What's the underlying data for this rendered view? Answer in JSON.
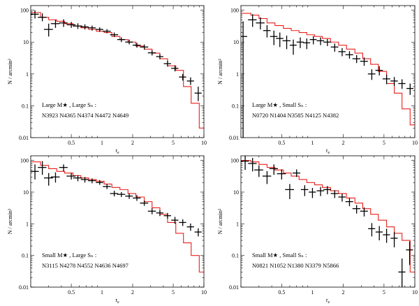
{
  "figure": {
    "xlabel": "r_e",
    "ylabel": "N / arcmin²",
    "xlim": [
      0.2,
      10
    ],
    "ylim": [
      0.01,
      140
    ],
    "xticks": [
      0.5,
      1,
      2,
      5,
      10
    ],
    "xtick_labels": [
      "0.5",
      "1",
      "2",
      "5",
      "10"
    ],
    "yticks": [
      0.01,
      0.1,
      1,
      10,
      100
    ],
    "ytick_labels": [
      "0.01",
      "0.1",
      "1",
      "10",
      "100"
    ]
  },
  "chart_data": [
    {
      "type": "scatter",
      "title": "",
      "annotation_line1": "Large M★ , Large Sₙ :",
      "annotation_line2": "N3923 N4365 N4374 N4472 N4649",
      "xlabel": "r_e",
      "ylabel": "N / arcmin²",
      "xlim": [
        0.2,
        10
      ],
      "ylim": [
        0.01,
        140
      ],
      "series": [
        {
          "name": "data",
          "kind": "errorbar",
          "x": [
            0.22,
            0.26,
            0.3,
            0.35,
            0.42,
            0.5,
            0.58,
            0.68,
            0.8,
            0.95,
            1.12,
            1.32,
            1.55,
            1.85,
            2.2,
            2.6,
            3.1,
            3.7,
            4.4,
            5.2,
            6.2,
            7.4,
            8.8
          ],
          "y": [
            75,
            60,
            25,
            38,
            40,
            35,
            32,
            30,
            28,
            25,
            22,
            17,
            12,
            10,
            8,
            7,
            4.6,
            3.5,
            2.1,
            1.5,
            0.8,
            0.6,
            0.25
          ],
          "xerr": [
            0.02,
            0.025,
            0.03,
            0.035,
            0.04,
            0.05,
            0.06,
            0.06,
            0.07,
            0.08,
            0.1,
            0.12,
            0.14,
            0.16,
            0.2,
            0.24,
            0.28,
            0.3,
            0.36,
            0.42,
            0.5,
            0.6,
            0.7
          ],
          "ylo": [
            55,
            45,
            15,
            28,
            30,
            28,
            26,
            25,
            23,
            21,
            19,
            14.5,
            10,
            8.5,
            6.7,
            5.8,
            3.8,
            2.9,
            1.7,
            1.2,
            0.62,
            0.45,
            0.14
          ],
          "yhi": [
            100,
            80,
            38,
            50,
            52,
            43,
            39,
            36,
            33,
            29,
            25.5,
            20,
            14,
            12,
            9.5,
            8.4,
            5.5,
            4.2,
            2.6,
            1.85,
            1.0,
            0.78,
            0.4
          ]
        },
        {
          "name": "model",
          "kind": "step",
          "edges": [
            0.2,
            0.25,
            0.3,
            0.36,
            0.43,
            0.52,
            0.62,
            0.74,
            0.88,
            1.05,
            1.25,
            1.5,
            1.8,
            2.15,
            2.6,
            3.1,
            3.7,
            4.4,
            5.3,
            6.3,
            7.5,
            9.0,
            10
          ],
          "values": [
            85,
            60,
            50,
            45,
            38,
            32,
            28,
            25,
            22,
            20,
            15,
            12,
            10,
            7.5,
            6,
            4.5,
            3,
            1.8,
            1.3,
            0.4,
            0.12,
            0.02
          ]
        }
      ]
    },
    {
      "type": "scatter",
      "title": "",
      "annotation_line1": "Large M★ , Small Sₙ :",
      "annotation_line2": "N0720 N1404 N3585 N4125 N4382",
      "xlabel": "r_e",
      "ylabel": "N / arcmin²",
      "xlim": [
        0.2,
        10
      ],
      "ylim": [
        0.01,
        140
      ],
      "series": [
        {
          "name": "data",
          "kind": "errorbar",
          "x": [
            0.21,
            0.26,
            0.31,
            0.36,
            0.42,
            0.48,
            0.56,
            0.65,
            0.76,
            0.88,
            1.02,
            1.2,
            1.4,
            1.65,
            1.95,
            2.3,
            2.7,
            3.2,
            3.8,
            4.5,
            5.3,
            6.3,
            7.5,
            9.0
          ],
          "y": [
            15,
            50,
            40,
            23,
            15,
            13,
            11,
            8,
            10,
            9.5,
            12,
            11,
            10,
            7,
            5,
            4,
            3,
            2.5,
            1,
            1.3,
            0.7,
            0.6,
            0.5,
            0.35
          ],
          "xerr": [
            0.02,
            0.025,
            0.03,
            0.03,
            0.035,
            0.04,
            0.05,
            0.05,
            0.06,
            0.07,
            0.08,
            0.1,
            0.12,
            0.14,
            0.16,
            0.2,
            0.24,
            0.28,
            0.32,
            0.38,
            0.45,
            0.52,
            0.6,
            0.7
          ],
          "ylo": [
            0.01,
            30,
            25,
            14,
            8,
            7,
            6,
            4,
            6.5,
            6,
            8.5,
            8,
            7.5,
            5,
            3.6,
            3,
            2.2,
            1.8,
            0.65,
            0.9,
            0.48,
            0.42,
            0.34,
            0.22
          ],
          "yhi": [
            45,
            75,
            60,
            34,
            23,
            20,
            16,
            12,
            14,
            13,
            15.5,
            14,
            12.5,
            9,
            6.5,
            5.2,
            3.9,
            3.3,
            1.4,
            1.75,
            0.95,
            0.8,
            0.68,
            0.5
          ]
        },
        {
          "name": "model",
          "kind": "step",
          "edges": [
            0.2,
            0.25,
            0.3,
            0.36,
            0.43,
            0.52,
            0.62,
            0.74,
            0.88,
            1.05,
            1.25,
            1.5,
            1.8,
            2.15,
            2.6,
            3.1,
            3.7,
            4.4,
            5.3,
            6.3,
            7.5,
            9.0,
            10
          ],
          "values": [
            80,
            70,
            55,
            40,
            33,
            27,
            23,
            20,
            17,
            15,
            13,
            10,
            8,
            6,
            4.5,
            3,
            2,
            1.2,
            0.5,
            0.25,
            0.08,
            0.025
          ]
        }
      ]
    },
    {
      "type": "scatter",
      "title": "",
      "annotation_line1": "Small M★ , Large Sₙ :",
      "annotation_line2": "N3115 N4278 N4552 N4636 N4697",
      "xlabel": "r_e",
      "ylabel": "N / arcmin²",
      "xlim": [
        0.2,
        10
      ],
      "ylim": [
        0.01,
        140
      ],
      "series": [
        {
          "name": "data",
          "kind": "errorbar",
          "x": [
            0.22,
            0.26,
            0.3,
            0.35,
            0.42,
            0.5,
            0.58,
            0.68,
            0.8,
            0.95,
            1.12,
            1.32,
            1.55,
            1.85,
            2.2,
            2.6,
            3.1,
            3.7,
            4.4,
            5.2,
            6.2,
            7.4,
            8.8
          ],
          "y": [
            45,
            60,
            28,
            30,
            60,
            32,
            28,
            25,
            23,
            20,
            15,
            9,
            8.5,
            7.5,
            6.5,
            4.5,
            2.5,
            2.2,
            1.8,
            1.3,
            1.1,
            0.8,
            0.55
          ],
          "xerr": [
            0.02,
            0.025,
            0.03,
            0.035,
            0.04,
            0.05,
            0.06,
            0.06,
            0.07,
            0.08,
            0.1,
            0.12,
            0.14,
            0.16,
            0.2,
            0.24,
            0.28,
            0.3,
            0.36,
            0.42,
            0.5,
            0.6,
            0.7
          ],
          "ylo": [
            25,
            35,
            16,
            20,
            45,
            25,
            22,
            20,
            19,
            17,
            12.5,
            7.3,
            7,
            6.1,
            5.3,
            3.7,
            2,
            1.75,
            1.45,
            1.0,
            0.85,
            0.6,
            0.4
          ],
          "yhi": [
            75,
            95,
            40,
            42,
            75,
            40,
            34,
            30,
            27,
            24,
            18,
            11,
            10,
            9,
            8,
            5.4,
            3.1,
            2.7,
            2.2,
            1.65,
            1.38,
            1.02,
            0.72
          ]
        },
        {
          "name": "model",
          "kind": "step",
          "edges": [
            0.2,
            0.25,
            0.3,
            0.36,
            0.43,
            0.52,
            0.62,
            0.74,
            0.88,
            1.05,
            1.25,
            1.5,
            1.8,
            2.15,
            2.6,
            3.1,
            3.7,
            4.4,
            5.3,
            6.3,
            7.5,
            9.0,
            10
          ],
          "values": [
            90,
            70,
            55,
            45,
            40,
            33,
            28,
            25,
            22,
            18,
            14,
            12,
            9,
            7,
            5,
            3.2,
            2,
            1.1,
            0.5,
            0.25,
            0.1,
            0.03
          ]
        }
      ]
    },
    {
      "type": "scatter",
      "title": "",
      "annotation_line1": "Small M★ , Small Sₙ :",
      "annotation_line2": "N0821 N1052 N1380 N3379 N5866",
      "xlabel": "r_e",
      "ylabel": "N / arcmin²",
      "xlim": [
        0.2,
        10
      ],
      "ylim": [
        0.01,
        140
      ],
      "series": [
        {
          "name": "data",
          "kind": "errorbar",
          "x": [
            0.22,
            0.26,
            0.3,
            0.36,
            0.42,
            0.5,
            0.6,
            0.7,
            0.84,
            1.0,
            1.2,
            1.4,
            1.65,
            1.95,
            2.3,
            2.7,
            3.2,
            3.8,
            4.5,
            5.3,
            6.3,
            7.5,
            8.9
          ],
          "y": [
            95,
            80,
            50,
            32,
            55,
            38,
            12,
            40,
            12,
            10,
            11,
            12,
            9,
            7,
            5,
            3,
            2.5,
            0.7,
            0.55,
            0.45,
            0.35,
            0.03,
            0.15
          ],
          "xerr": [
            0.02,
            0.025,
            0.03,
            0.035,
            0.04,
            0.05,
            0.06,
            0.06,
            0.07,
            0.08,
            0.1,
            0.12,
            0.14,
            0.16,
            0.2,
            0.24,
            0.28,
            0.3,
            0.36,
            0.42,
            0.5,
            0.6,
            0.7
          ],
          "ylo": [
            50,
            45,
            30,
            18,
            35,
            25,
            6,
            30,
            7.5,
            6.5,
            7.5,
            8.5,
            6.5,
            5,
            3.6,
            2.1,
            1.7,
            0.4,
            0.3,
            0.25,
            0.18,
            0.01,
            0.05
          ],
          "yhi": [
            140,
            120,
            70,
            46,
            75,
            52,
            18,
            52,
            16.5,
            13.5,
            14.5,
            15.5,
            11.5,
            9,
            6.5,
            3.9,
            3.3,
            1.05,
            0.85,
            0.7,
            0.55,
            0.08,
            0.28
          ]
        },
        {
          "name": "model",
          "kind": "step",
          "edges": [
            0.2,
            0.25,
            0.3,
            0.36,
            0.43,
            0.52,
            0.62,
            0.74,
            0.88,
            1.05,
            1.25,
            1.5,
            1.8,
            2.15,
            2.6,
            3.1,
            3.7,
            4.4,
            5.3,
            6.3,
            7.5,
            9.0,
            10
          ],
          "values": [
            100,
            90,
            75,
            60,
            50,
            40,
            32,
            25,
            20,
            17,
            14,
            11,
            9,
            6.5,
            4.5,
            3,
            2,
            1.3,
            0.8,
            0.5,
            0.3,
            0.03
          ]
        }
      ]
    }
  ]
}
